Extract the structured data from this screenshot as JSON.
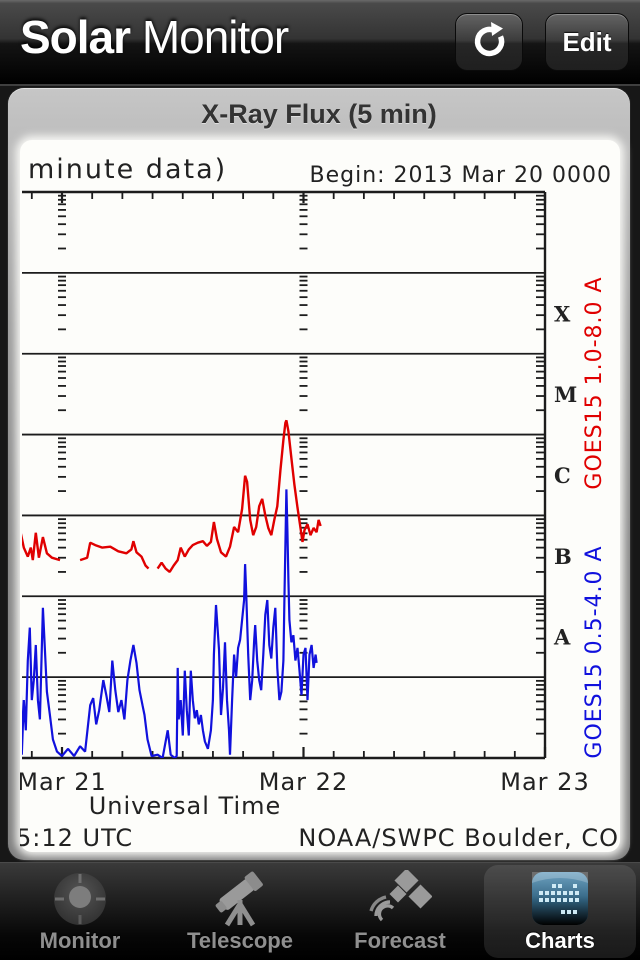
{
  "nav": {
    "title_bold": "Solar",
    "title_light": " Monitor",
    "edit_label": "Edit"
  },
  "card": {
    "title": "X-Ray Flux (5 min)"
  },
  "chart_data": {
    "type": "line",
    "title_partial": "minute data)",
    "begin_label": "Begin:  2013 Mar 20 0000",
    "xlabel": "Universal Time",
    "x_ticks": [
      {
        "label": "Mar 21",
        "t": 0
      },
      {
        "label": "Mar 22",
        "t": 24
      },
      {
        "label": "Mar 23",
        "t": 48
      }
    ],
    "right_band_labels": [
      "X",
      "M",
      "C",
      "B",
      "A"
    ],
    "footer_left": "5:12 UTC",
    "footer_right": "NOAA/SWPC Boulder, CO",
    "ylog_range": [
      1e-09,
      0.01
    ],
    "axis": {
      "hours_visible": [
        -4.2,
        48
      ],
      "minor_tick_step_hours": 3,
      "day_tick_hours": [
        0,
        24,
        48
      ],
      "frame_color": "#1c1c1c",
      "text_color": "#222222"
    },
    "series": [
      {
        "name": "GOES15 1.0-8.0 A",
        "color": "#e00000",
        "points": [
          [
            -4.2,
            7e-07
          ],
          [
            -3.8,
            4e-07
          ],
          [
            -3.4,
            3.1e-07
          ],
          [
            -3.1,
            4e-07
          ],
          [
            -2.9,
            2.8e-07
          ],
          [
            -2.6,
            6.1e-07
          ],
          [
            -2.3,
            3e-07
          ],
          [
            -1.9,
            5.4e-07
          ],
          [
            -1.5,
            3.4e-07
          ],
          [
            -1.0,
            3e-07
          ],
          [
            -0.2,
            2.8e-07
          ],
          [
            0.8,
            2.9e-07
          ],
          [
            1.8,
            2.8e-07
          ],
          [
            2.5,
            3e-07
          ],
          [
            2.8,
            4.6e-07
          ],
          [
            3.3,
            4.3e-07
          ],
          [
            4.0,
            4e-07
          ],
          [
            4.8,
            4.1e-07
          ],
          [
            5.6,
            3.6e-07
          ],
          [
            6.4,
            3.4e-07
          ],
          [
            6.9,
            3.8e-07
          ],
          [
            7.1,
            4.8e-07
          ],
          [
            7.4,
            3.5e-07
          ],
          [
            7.9,
            3.1e-07
          ],
          [
            8.3,
            2.4e-07
          ],
          [
            8.6,
            2.2e-07
          ],
          [
            9.5,
            2.2e-07
          ],
          [
            9.9,
            2.6e-07
          ],
          [
            10.3,
            2.2e-07
          ],
          [
            10.7,
            2e-07
          ],
          [
            11.1,
            2.4e-07
          ],
          [
            11.5,
            2.8e-07
          ],
          [
            11.8,
            4e-07
          ],
          [
            12.2,
            3.1e-07
          ],
          [
            12.6,
            3.8e-07
          ],
          [
            13.0,
            4.3e-07
          ],
          [
            13.5,
            4.6e-07
          ],
          [
            14.0,
            4.8e-07
          ],
          [
            14.4,
            4.2e-07
          ],
          [
            14.8,
            4.7e-07
          ],
          [
            15.1,
            8.3e-07
          ],
          [
            15.4,
            5.1e-07
          ],
          [
            15.8,
            3.5e-07
          ],
          [
            16.3,
            3.1e-07
          ],
          [
            16.7,
            4.1e-07
          ],
          [
            17.1,
            7.2e-07
          ],
          [
            17.5,
            6.2e-07
          ],
          [
            17.9,
            1.2e-06
          ],
          [
            18.2,
            3.1e-06
          ],
          [
            18.4,
            2.6e-06
          ],
          [
            18.7,
            8.8e-07
          ],
          [
            19.0,
            5.7e-07
          ],
          [
            19.3,
            7.2e-07
          ],
          [
            19.6,
            1.3e-06
          ],
          [
            19.9,
            1.6e-06
          ],
          [
            20.2,
            1e-06
          ],
          [
            20.5,
            7e-07
          ],
          [
            20.8,
            5.7e-07
          ],
          [
            21.1,
            8.8e-07
          ],
          [
            21.4,
            1.3e-06
          ],
          [
            21.7,
            3.6e-06
          ],
          [
            22.0,
            8.6e-06
          ],
          [
            22.2,
            1.4e-05
          ],
          [
            22.3,
            1.5e-05
          ],
          [
            22.5,
            1.1e-05
          ],
          [
            22.8,
            5.1e-06
          ],
          [
            23.1,
            2.4e-06
          ],
          [
            23.4,
            1.25e-06
          ],
          [
            23.7,
            7e-07
          ],
          [
            23.9,
            4.7e-07
          ],
          [
            24.1,
            6.6e-07
          ],
          [
            24.4,
            7.8e-07
          ],
          [
            24.7,
            5.7e-07
          ],
          [
            25.0,
            7e-07
          ],
          [
            25.3,
            6.2e-07
          ],
          [
            25.5,
            8.8e-07
          ],
          [
            25.7,
            7.4e-07
          ]
        ]
      },
      {
        "name": "GOES15 0.5-4.0 A",
        "color": "#1111dd",
        "points": [
          [
            -4.2,
            6.8e-08
          ],
          [
            -4.1,
            9.2e-09
          ],
          [
            -4.0,
            1.1e-09
          ],
          [
            -3.8,
            5.2e-09
          ],
          [
            -3.6,
            2.2e-09
          ],
          [
            -3.4,
            1.6e-08
          ],
          [
            -3.2,
            4.1e-08
          ],
          [
            -3.0,
            5.2e-09
          ],
          [
            -2.8,
            9.2e-09
          ],
          [
            -2.6,
            2.5e-08
          ],
          [
            -2.4,
            5.2e-09
          ],
          [
            -2.2,
            3e-09
          ],
          [
            -1.9,
            7.2e-08
          ],
          [
            -1.7,
            2.2e-08
          ],
          [
            -1.5,
            6.6e-09
          ],
          [
            -1.2,
            3.4e-09
          ],
          [
            -0.9,
            1.7e-09
          ],
          [
            -0.5,
            1.2e-09
          ],
          [
            0.0,
            1.06e-09
          ],
          [
            0.6,
            1.3e-09
          ],
          [
            1.2,
            1.06e-09
          ],
          [
            1.8,
            1.4e-09
          ],
          [
            2.3,
            1.2e-09
          ],
          [
            2.8,
            4.5e-09
          ],
          [
            3.1,
            5.5e-09
          ],
          [
            3.4,
            2.6e-09
          ],
          [
            3.7,
            3.9e-09
          ],
          [
            4.1,
            9.2e-09
          ],
          [
            4.4,
            6e-09
          ],
          [
            4.7,
            3.7e-09
          ],
          [
            5.0,
            1.6e-08
          ],
          [
            5.3,
            6.9e-09
          ],
          [
            5.6,
            3.7e-09
          ],
          [
            5.9,
            5.2e-09
          ],
          [
            6.2,
            3e-09
          ],
          [
            6.5,
            9.2e-09
          ],
          [
            6.8,
            1.6e-08
          ],
          [
            7.1,
            2.5e-08
          ],
          [
            7.4,
            1.5e-08
          ],
          [
            7.7,
            6.9e-09
          ],
          [
            8.0,
            4.5e-09
          ],
          [
            8.2,
            3.4e-09
          ],
          [
            8.5,
            1.7e-09
          ],
          [
            8.9,
            1.06e-09
          ],
          [
            9.5,
            1.1e-09
          ],
          [
            10.0,
            1e-09
          ],
          [
            10.5,
            2.2e-09
          ],
          [
            10.8,
            1.1e-09
          ],
          [
            11.2,
            1e-09
          ],
          [
            11.4,
            1.06e-09
          ],
          [
            11.5,
            1.3e-08
          ],
          [
            11.6,
            3e-09
          ],
          [
            11.8,
            5.2e-09
          ],
          [
            12.0,
            1.9e-09
          ],
          [
            12.2,
            1.2e-08
          ],
          [
            12.4,
            3.9e-09
          ],
          [
            12.6,
            1.9e-09
          ],
          [
            12.8,
            1.2e-08
          ],
          [
            13.0,
            5.2e-09
          ],
          [
            13.2,
            3.1e-09
          ],
          [
            13.4,
            3.9e-09
          ],
          [
            13.6,
            2.6e-09
          ],
          [
            13.8,
            3.4e-09
          ],
          [
            14.0,
            2.2e-09
          ],
          [
            14.2,
            1.6e-09
          ],
          [
            14.5,
            1.3e-09
          ],
          [
            14.8,
            2.2e-09
          ],
          [
            15.0,
            5.2e-09
          ],
          [
            15.1,
            1.9e-08
          ],
          [
            15.3,
            7.8e-08
          ],
          [
            15.6,
            2.2e-08
          ],
          [
            15.8,
            3.4e-09
          ],
          [
            16.0,
            7.3e-09
          ],
          [
            16.2,
            2.7e-08
          ],
          [
            16.4,
            5.2e-09
          ],
          [
            16.6,
            2.2e-09
          ],
          [
            16.7,
            1.1e-09
          ],
          [
            16.9,
            5.2e-09
          ],
          [
            17.1,
            1.9e-08
          ],
          [
            17.3,
            1e-08
          ],
          [
            17.5,
            2.3e-08
          ],
          [
            17.7,
            2.9e-08
          ],
          [
            17.9,
            5.1e-08
          ],
          [
            18.1,
            9e-08
          ],
          [
            18.2,
            2.5e-07
          ],
          [
            18.3,
            1.2e-07
          ],
          [
            18.5,
            1.9e-08
          ],
          [
            18.7,
            5.2e-09
          ],
          [
            18.9,
            9.2e-09
          ],
          [
            19.1,
            2.9e-08
          ],
          [
            19.2,
            4.4e-08
          ],
          [
            19.4,
            1.6e-08
          ],
          [
            19.6,
            9.2e-09
          ],
          [
            19.8,
            6.9e-09
          ],
          [
            20.0,
            1.9e-08
          ],
          [
            20.2,
            5.9e-08
          ],
          [
            20.4,
            9e-08
          ],
          [
            20.6,
            2.5e-08
          ],
          [
            20.8,
            1.7e-08
          ],
          [
            21.0,
            4.1e-08
          ],
          [
            21.2,
            7.2e-08
          ],
          [
            21.4,
            1.3e-08
          ],
          [
            21.6,
            5.2e-09
          ],
          [
            21.8,
            6.6e-09
          ],
          [
            22.0,
            1.6e-08
          ],
          [
            22.1,
            9e-08
          ],
          [
            22.3,
            2.1e-06
          ],
          [
            22.4,
            6.6e-07
          ],
          [
            22.5,
            1.6e-07
          ],
          [
            22.6,
            5.1e-08
          ],
          [
            22.8,
            2.7e-08
          ],
          [
            23.0,
            3.3e-08
          ],
          [
            23.2,
            1.6e-08
          ],
          [
            23.4,
            2.3e-08
          ],
          [
            23.6,
            1.2e-08
          ],
          [
            23.8,
            6e-09
          ],
          [
            24.0,
            1.9e-08
          ],
          [
            24.2,
            2.3e-08
          ],
          [
            24.4,
            5.2e-09
          ],
          [
            24.6,
            1.9e-08
          ],
          [
            24.8,
            2.5e-08
          ],
          [
            25.0,
            1.3e-08
          ],
          [
            25.2,
            1.9e-08
          ],
          [
            25.3,
            1.5e-08
          ]
        ]
      }
    ]
  },
  "tabbar": {
    "items": [
      {
        "label": "Monitor",
        "icon": "sun-target-icon",
        "selected": false
      },
      {
        "label": "Telescope",
        "icon": "telescope-icon",
        "selected": false
      },
      {
        "label": "Forecast",
        "icon": "satellite-icon",
        "selected": false
      },
      {
        "label": "Charts",
        "icon": "chart-dots-icon",
        "selected": true
      }
    ]
  }
}
